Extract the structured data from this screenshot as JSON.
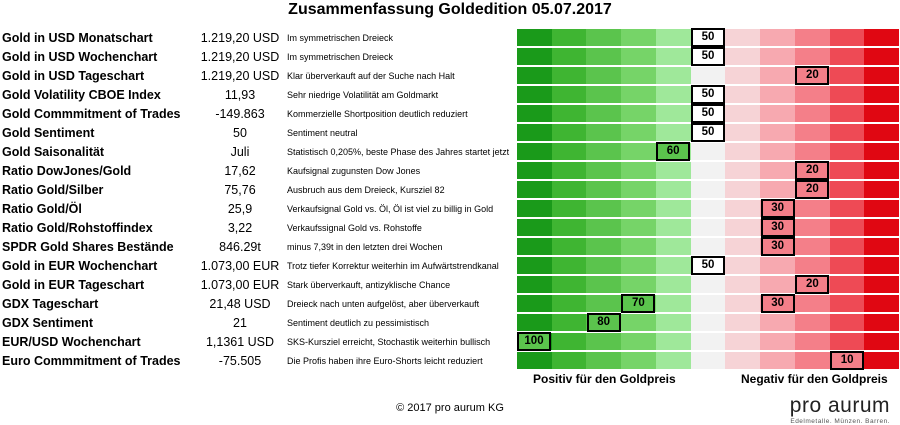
{
  "colors": {
    "scale": [
      "#1a9a1a",
      "#3fb532",
      "#5bc44d",
      "#76d468",
      "#9fe89a",
      "#f2f2f2",
      "#f6d3d6",
      "#f7a9b0",
      "#f47f89",
      "#ee4a55",
      "#e00712"
    ],
    "marker_green": "#5bc44d",
    "marker_red": "#f47f89"
  },
  "title": "Zusammenfassung Goldedition 05.07.2017",
  "chart_data": {
    "type": "table",
    "title": "Zusammenfassung Goldedition 05.07.2017",
    "scale_range": [
      0,
      100
    ],
    "rows": [
      {
        "label": "Gold in USD Monatschart",
        "value": "1.219,20 USD",
        "comment": "Im symmetrischen Dreieck",
        "score": 50
      },
      {
        "label": "Gold in USD Wochenchart",
        "value": "1.219,20 USD",
        "comment": "Im symmetrischen Dreieck",
        "score": 50
      },
      {
        "label": "Gold in USD Tageschart",
        "value": "1.219,20 USD",
        "comment": "Klar überverkauft auf der Suche nach Halt",
        "score": 20
      },
      {
        "label": "Gold Volatility CBOE Index",
        "value": "11,93",
        "comment": "Sehr niedrige Volatilität am Goldmarkt",
        "score": 50
      },
      {
        "label": "Gold Commmitment of Trades",
        "value": "-149.863",
        "comment": "Kommerzielle Shortposition deutlich reduziert",
        "score": 50
      },
      {
        "label": "Gold Sentiment",
        "value": "50",
        "comment": "Sentiment neutral",
        "score": 50
      },
      {
        "label": "Gold Saisonalität",
        "value": "Juli",
        "comment": "Statistisch 0,205%, beste Phase des Jahres startet jetzt",
        "score": 60
      },
      {
        "label": "Ratio DowJones/Gold",
        "value": "17,62",
        "comment": "Kaufsignal zugunsten Dow Jones",
        "score": 20
      },
      {
        "label": "Ratio Gold/Silber",
        "value": "75,76",
        "comment": "Ausbruch aus dem Dreieck, Kursziel 82",
        "score": 20
      },
      {
        "label": "Ratio Gold/Öl",
        "value": "25,9",
        "comment": "Verkaufsignal Gold vs. Öl, Öl ist viel zu billig in Gold",
        "score": 30
      },
      {
        "label": "Ratio Gold/Rohstoffindex",
        "value": "3,22",
        "comment": "Verkaufssignal Gold vs. Rohstoffe",
        "score": 30
      },
      {
        "label": "SPDR Gold Shares Bestände",
        "value": "846.29t",
        "comment": "minus 7,39t in den letzten drei Wochen",
        "score": 30
      },
      {
        "label": "Gold in EUR Wochenchart",
        "value": "1.073,00 EUR",
        "comment": "Trotz tiefer Korrektur weiterhin im Aufwärtstrendkanal",
        "score": 50
      },
      {
        "label": "Gold in EUR Tageschart",
        "value": "1.073,00 EUR",
        "comment": "Stark überverkauft, antizyklische Chance",
        "score": 20
      },
      {
        "label": "GDX Tageschart",
        "value": "21,48 USD",
        "comment": "Dreieck nach unten aufgelöst, aber überverkauft",
        "score": [
          70,
          30
        ]
      },
      {
        "label": "GDX Sentiment",
        "value": "21",
        "comment": "Sentiment deutlich zu pessimistisch",
        "score": 80
      },
      {
        "label": "EUR/USD Wochenchart",
        "value": "1,1361 USD",
        "comment": "SKS-Kursziel erreicht, Stochastik weiterhin bullisch",
        "score": 100
      },
      {
        "label": "Euro Commmitment of Trades",
        "value": "-75.505",
        "comment": "Die Profis haben ihre Euro-Shorts leicht reduziert",
        "score": 10
      }
    ],
    "xlabel_positive": "Positiv für den Goldpreis",
    "xlabel_negative": "Negativ für den Goldpreis"
  },
  "footer": "© 2017 pro aurum KG",
  "logo": {
    "name": "pro aurum",
    "tagline": "Edelmetalle. Münzen. Barren."
  }
}
